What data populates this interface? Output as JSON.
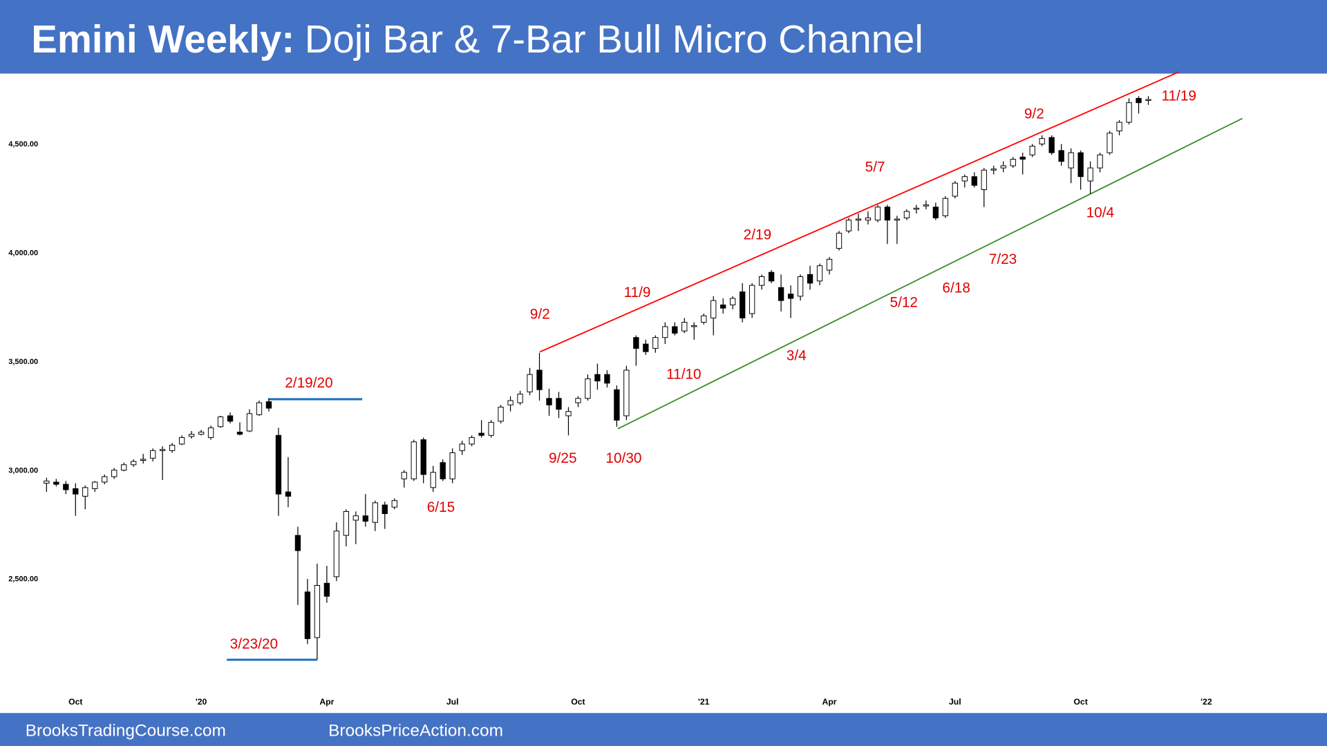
{
  "header": {
    "title_lead": "Emini Weekly:",
    "title": "Doji Bar & 7-Bar Bull Micro Channel"
  },
  "chart_data": {
    "type": "candlestick",
    "up_color": "#ffffff",
    "down_color": "#000000",
    "annotation_color": "#e00000",
    "categories": [
      null,
      null,
      null,
      "Oct",
      null,
      null,
      null,
      null,
      null,
      null,
      null,
      null,
      null,
      null,
      null,
      null,
      "'20",
      null,
      null,
      null,
      null,
      null,
      null,
      null,
      null,
      null,
      null,
      null,
      null,
      "Apr",
      null,
      null,
      null,
      null,
      null,
      null,
      null,
      null,
      null,
      null,
      null,
      null,
      "Jul",
      null,
      null,
      null,
      null,
      null,
      null,
      null,
      null,
      null,
      null,
      null,
      null,
      "Oct",
      null,
      null,
      null,
      null,
      null,
      null,
      null,
      null,
      null,
      null,
      null,
      null,
      "'21",
      null,
      null,
      null,
      null,
      null,
      null,
      null,
      null,
      null,
      null,
      null,
      null,
      "Apr",
      null,
      null,
      null,
      null,
      null,
      null,
      null,
      null,
      null,
      null,
      null,
      null,
      "Jul",
      null,
      null,
      null,
      null,
      null,
      null,
      null,
      null,
      null,
      null,
      null,
      null,
      "Oct",
      null,
      null,
      null,
      null,
      null,
      null,
      null,
      null,
      null,
      null,
      null,
      null,
      "'22"
    ],
    "ohlc": [
      [
        2940,
        2965,
        2900,
        2950
      ],
      [
        2945,
        2960,
        2925,
        2935
      ],
      [
        2935,
        2950,
        2890,
        2910
      ],
      [
        2915,
        2940,
        2790,
        2890
      ],
      [
        2880,
        2930,
        2820,
        2920
      ],
      [
        2915,
        2950,
        2900,
        2945
      ],
      [
        2945,
        2980,
        2935,
        2970
      ],
      [
        2970,
        3010,
        2960,
        3000
      ],
      [
        3000,
        3035,
        2995,
        3025
      ],
      [
        3025,
        3050,
        3015,
        3040
      ],
      [
        3045,
        3075,
        3030,
        3050
      ],
      [
        3055,
        3100,
        3040,
        3090
      ],
      [
        3090,
        3110,
        2955,
        3095
      ],
      [
        3090,
        3125,
        3080,
        3115
      ],
      [
        3120,
        3160,
        3115,
        3150
      ],
      [
        3155,
        3180,
        3145,
        3165
      ],
      [
        3165,
        3185,
        3160,
        3175
      ],
      [
        3150,
        3205,
        3140,
        3195
      ],
      [
        3200,
        3250,
        3195,
        3245
      ],
      [
        3250,
        3265,
        3215,
        3225
      ],
      [
        3175,
        3220,
        3160,
        3165
      ],
      [
        3180,
        3280,
        3175,
        3260
      ],
      [
        3255,
        3320,
        3250,
        3310
      ],
      [
        3315,
        3330,
        3270,
        3285
      ],
      [
        3160,
        3195,
        2790,
        2890
      ],
      [
        2900,
        3060,
        2830,
        2880
      ],
      [
        2700,
        2740,
        2380,
        2630
      ],
      [
        2440,
        2500,
        2200,
        2225
      ],
      [
        2230,
        2570,
        2130,
        2470
      ],
      [
        2480,
        2560,
        2390,
        2420
      ],
      [
        2510,
        2760,
        2490,
        2720
      ],
      [
        2700,
        2820,
        2650,
        2810
      ],
      [
        2770,
        2810,
        2660,
        2790
      ],
      [
        2790,
        2890,
        2740,
        2765
      ],
      [
        2760,
        2860,
        2720,
        2850
      ],
      [
        2840,
        2855,
        2730,
        2800
      ],
      [
        2830,
        2870,
        2820,
        2860
      ],
      [
        2960,
        3000,
        2920,
        2990
      ],
      [
        2960,
        3140,
        2950,
        3130
      ],
      [
        3140,
        3150,
        2940,
        2980
      ],
      [
        2920,
        3020,
        2900,
        2990
      ],
      [
        3035,
        3050,
        2950,
        2960
      ],
      [
        2960,
        3100,
        2940,
        3080
      ],
      [
        3090,
        3135,
        3070,
        3120
      ],
      [
        3120,
        3160,
        3110,
        3150
      ],
      [
        3170,
        3230,
        3150,
        3160
      ],
      [
        3160,
        3230,
        3150,
        3220
      ],
      [
        3225,
        3300,
        3215,
        3290
      ],
      [
        3300,
        3340,
        3270,
        3320
      ],
      [
        3310,
        3365,
        3300,
        3350
      ],
      [
        3360,
        3470,
        3345,
        3440
      ],
      [
        3460,
        3540,
        3320,
        3370
      ],
      [
        3330,
        3375,
        3250,
        3300
      ],
      [
        3330,
        3360,
        3240,
        3280
      ],
      [
        3250,
        3290,
        3160,
        3270
      ],
      [
        3310,
        3340,
        3290,
        3330
      ],
      [
        3330,
        3440,
        3320,
        3420
      ],
      [
        3440,
        3490,
        3370,
        3410
      ],
      [
        3440,
        3460,
        3380,
        3400
      ],
      [
        3370,
        3390,
        3200,
        3230
      ],
      [
        3250,
        3480,
        3230,
        3460
      ],
      [
        3610,
        3620,
        3480,
        3560
      ],
      [
        3580,
        3600,
        3530,
        3545
      ],
      [
        3560,
        3620,
        3540,
        3610
      ],
      [
        3610,
        3680,
        3580,
        3660
      ],
      [
        3660,
        3680,
        3620,
        3630
      ],
      [
        3640,
        3700,
        3630,
        3680
      ],
      [
        3660,
        3680,
        3600,
        3665
      ],
      [
        3680,
        3720,
        3670,
        3710
      ],
      [
        3700,
        3800,
        3620,
        3780
      ],
      [
        3760,
        3790,
        3720,
        3745
      ],
      [
        3760,
        3800,
        3740,
        3790
      ],
      [
        3820,
        3860,
        3680,
        3700
      ],
      [
        3720,
        3860,
        3700,
        3850
      ],
      [
        3850,
        3900,
        3830,
        3890
      ],
      [
        3910,
        3920,
        3860,
        3870
      ],
      [
        3840,
        3900,
        3730,
        3780
      ],
      [
        3810,
        3850,
        3700,
        3790
      ],
      [
        3800,
        3900,
        3780,
        3890
      ],
      [
        3900,
        3940,
        3830,
        3860
      ],
      [
        3870,
        3950,
        3850,
        3940
      ],
      [
        3920,
        3980,
        3900,
        3970
      ],
      [
        4020,
        4100,
        4010,
        4090
      ],
      [
        4100,
        4160,
        4090,
        4150
      ],
      [
        4150,
        4180,
        4100,
        4155
      ],
      [
        4150,
        4190,
        4130,
        4160
      ],
      [
        4150,
        4220,
        4140,
        4210
      ],
      [
        4210,
        4220,
        4040,
        4150
      ],
      [
        4150,
        4170,
        4040,
        4155
      ],
      [
        4160,
        4200,
        4150,
        4190
      ],
      [
        4200,
        4220,
        4180,
        4205
      ],
      [
        4215,
        4240,
        4200,
        4220
      ],
      [
        4210,
        4230,
        4150,
        4160
      ],
      [
        4170,
        4260,
        4160,
        4250
      ],
      [
        4260,
        4330,
        4250,
        4320
      ],
      [
        4330,
        4360,
        4300,
        4350
      ],
      [
        4350,
        4370,
        4300,
        4310
      ],
      [
        4290,
        4390,
        4210,
        4380
      ],
      [
        4380,
        4400,
        4360,
        4385
      ],
      [
        4390,
        4420,
        4370,
        4400
      ],
      [
        4400,
        4440,
        4390,
        4430
      ],
      [
        4440,
        4460,
        4360,
        4430
      ],
      [
        4450,
        4500,
        4440,
        4490
      ],
      [
        4500,
        4540,
        4490,
        4525
      ],
      [
        4530,
        4540,
        4450,
        4460
      ],
      [
        4470,
        4500,
        4400,
        4420
      ],
      [
        4390,
        4480,
        4320,
        4460
      ],
      [
        4460,
        4470,
        4290,
        4350
      ],
      [
        4330,
        4420,
        4270,
        4390
      ],
      [
        4390,
        4460,
        4370,
        4450
      ],
      [
        4460,
        4560,
        4450,
        4550
      ],
      [
        4560,
        4610,
        4540,
        4600
      ],
      [
        4600,
        4710,
        4590,
        4690
      ],
      [
        4710,
        4720,
        4640,
        4690
      ],
      [
        4700,
        4720,
        4680,
        4705
      ],
      null,
      null,
      null,
      null,
      null,
      null
    ],
    "ylim": [
      1992,
      4820
    ],
    "yticks": [
      {
        "value": 2500,
        "label": "2,500.00"
      },
      {
        "value": 3000,
        "label": "3,000.00"
      },
      {
        "value": 3500,
        "label": "3,500.00"
      },
      {
        "value": 4000,
        "label": "4,000.00"
      },
      {
        "value": 4500,
        "label": "4,500.00"
      }
    ],
    "annotations": [
      "2/19/20",
      "3/23/20",
      "6/15",
      "9/2",
      "9/25",
      "10/30",
      "11/9",
      "11/10",
      "2/19",
      "3/4",
      "5/7",
      "5/12",
      "6/18",
      "7/23",
      "9/2",
      "10/4",
      "11/19"
    ]
  },
  "footer": {
    "left": "BrooksTradingCourse.com",
    "right": "BrooksPriceAction.com"
  }
}
